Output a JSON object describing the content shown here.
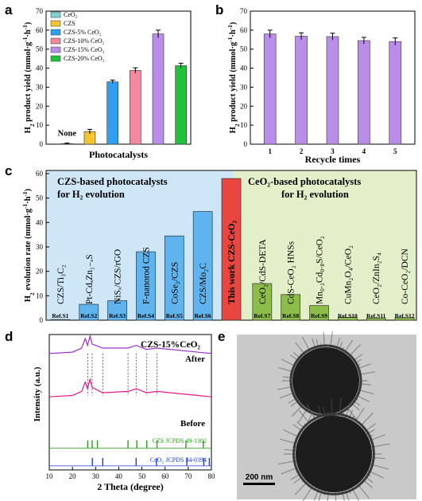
{
  "colors": {
    "panel_c_left_bg": "#cfe6f7",
    "panel_c_right_bg": "#e3efc8",
    "highlight_bar": "#e8473f",
    "tem_bg": "#c9c9c9"
  },
  "chart_data": [
    {
      "panel": "a",
      "type": "bar",
      "ylabel": "H2 product yield (mmol·g⁻¹·h⁻¹)",
      "xlabel": "Photocatalysts",
      "ylim": [
        0,
        70
      ],
      "yticks": [
        0,
        10,
        20,
        30,
        40,
        50,
        60,
        70
      ],
      "categories": [
        "CeO2",
        "CZS",
        "CZS-5% CeO2",
        "CZS-10% CeO2",
        "CZS-15% CeO2",
        "CZS-20% CeO2"
      ],
      "legend": [
        "CeO₂",
        "CZS",
        "CZS-5% CeO₂",
        "CZS-10% CeO₂",
        "CZS-15% CeO₂",
        "CZS-20% CeO₂"
      ],
      "values": [
        0.3,
        6.6,
        32.8,
        38.8,
        58.0,
        41.3
      ],
      "errors": [
        0.3,
        1.2,
        0.9,
        1.4,
        2.0,
        1.3
      ],
      "colors": [
        "#7fd3cf",
        "#f2c632",
        "#2f9ff0",
        "#f08a9c",
        "#b98de8",
        "#1fc23a"
      ],
      "annotation": "None",
      "legend_position": "top-left"
    },
    {
      "panel": "b",
      "type": "bar",
      "ylabel": "H2 product yield (mmol·g⁻¹·h⁻¹)",
      "xlabel": "Recycle times",
      "ylim": [
        0,
        70
      ],
      "yticks": [
        0,
        10,
        20,
        30,
        40,
        50,
        60,
        70
      ],
      "categories": [
        "1",
        "2",
        "3",
        "4",
        "5"
      ],
      "values": [
        58.0,
        56.8,
        56.6,
        54.5,
        54.0
      ],
      "errors": [
        2.0,
        1.8,
        1.8,
        1.7,
        1.9
      ],
      "color": "#b98de8"
    },
    {
      "panel": "c",
      "type": "bar",
      "ylabel": "H2 evolution rate (mmol·g⁻¹·h⁻¹)",
      "ylim": [
        0,
        60
      ],
      "yticks": [
        0,
        10,
        20,
        30,
        40,
        50,
        60
      ],
      "group_left": "CZS-based photocatalysts for H₂ evolution",
      "group_right": "CeO₂-based photocatalysts for H₂ evolution",
      "categories": [
        "CZS/Ti3C2",
        "Pt-CdxZn1-xS",
        "NiSx/CZS/rGO",
        "F-nanorod CZS",
        "CoSe2/CZS",
        "CZS/Mo2C",
        "This work CZS-CeO2",
        "CeO2/CdS-DETA",
        "CdS-CeO2 HNSs",
        "Mn0.2Cd0.8S/CeO2",
        "CuMn2O4/CeO2",
        "CeO2/ZnIn2S4",
        "Co-CeO2/DCN"
      ],
      "bar_labels": [
        "CZS/Ti₃C₂",
        "Pt-CdₓZn₁₋ₓS",
        "NiSₓ/CZS/rGO",
        "F-nanorod CZS",
        "CoSe₂/CZS",
        "CZS/Mo₂C",
        "This work CZS-CeO₂",
        "CeO₂/CdS-DETA",
        "CdS-CeO₂ HNSs",
        "Mn₀.₂Cd₀.₈S/CeO₂",
        "CuMn₂O₄/CeO₂",
        "CeO₂/ZnIn₂S₄",
        "Co-CeO₂/DCN"
      ],
      "refs": [
        "Ref.S1",
        "Ref.S2",
        "Ref.S3",
        "Ref.S4",
        "Ref.S5",
        "Ref.S6",
        "",
        "Ref.S7",
        "Ref.S8",
        "Ref.S9",
        "Ref.S10",
        "Ref.S11",
        "Ref.S12"
      ],
      "values": [
        0.3,
        6.5,
        8.0,
        28.0,
        34.5,
        44.5,
        58.0,
        15.0,
        10.5,
        6.0,
        1.2,
        0.8,
        1.0
      ]
    },
    {
      "panel": "d",
      "type": "line",
      "title": "CZS-15%CeO₂",
      "ylabel": "Intensity (a.u.)",
      "xlabel": "2 Theta (degree)",
      "xlim": [
        10,
        80
      ],
      "xticks": [
        10,
        20,
        30,
        40,
        50,
        60,
        70,
        80
      ],
      "series": [
        {
          "name": "After",
          "color": "#9b30c9",
          "x": [
            10,
            20,
            24,
            25.5,
            26.5,
            27.6,
            28.5,
            33,
            44,
            47.5,
            52,
            56.5,
            80
          ],
          "y": [
            0.86,
            0.87,
            0.9,
            0.97,
            0.92,
            0.99,
            0.93,
            0.9,
            0.9,
            0.92,
            0.89,
            0.9,
            0.86
          ]
        },
        {
          "name": "Before",
          "color": "#e8188a",
          "x": [
            10,
            20,
            24,
            25.5,
            26.5,
            27.6,
            28.5,
            33,
            44,
            47.5,
            52,
            56.5,
            80
          ],
          "y": [
            0.54,
            0.55,
            0.58,
            0.65,
            0.6,
            0.67,
            0.61,
            0.57,
            0.58,
            0.6,
            0.57,
            0.58,
            0.54
          ]
        }
      ],
      "references": [
        {
          "name": "CZS JCPDS 49-1302",
          "color": "#2e9e1f",
          "peaks": [
            26.6,
            28.5,
            30.8,
            44.0,
            47.8,
            52.1,
            56.5,
            69.0,
            76.5
          ]
        },
        {
          "name": "CeO₂ JCPDS 34-0394",
          "color": "#1f3de0",
          "peaks": [
            28.6,
            33.1,
            47.5,
            56.3,
            69.4,
            76.7,
            79.1
          ]
        }
      ]
    }
  ],
  "panels": {
    "a": "a",
    "b": "b",
    "c": "c",
    "d": "d",
    "e": "e",
    "scale_bar": "200 nm"
  }
}
